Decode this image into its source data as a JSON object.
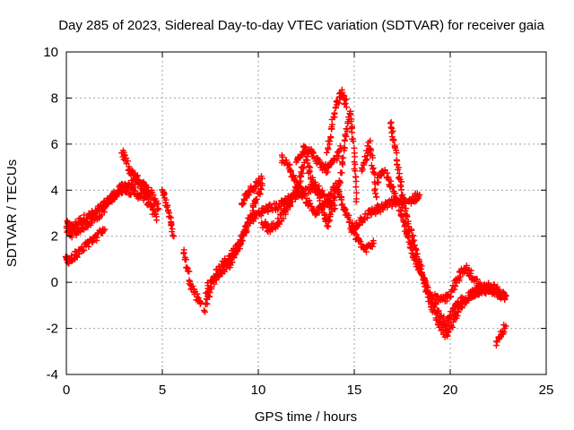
{
  "chart_data": {
    "type": "scatter",
    "title": "Day 285 of 2023, Sidereal Day-to-day VTEC variation (SDTVAR) for receiver gaia",
    "xlabel": "GPS time / hours",
    "ylabel": "SDTVAR / TECUs",
    "xlim": [
      0,
      25
    ],
    "ylim": [
      -4,
      10
    ],
    "xticks": [
      0,
      5,
      10,
      15,
      20,
      25
    ],
    "yticks": [
      -4,
      -2,
      0,
      2,
      4,
      6,
      8,
      10
    ],
    "grid": true,
    "marker": "+",
    "series": [
      {
        "name": "SDTVAR",
        "color": "#ff0000",
        "description": "dense per-satellite traces",
        "tracks": [
          {
            "x": [
              0,
              0.3,
              0.6,
              1.0,
              1.5,
              2.0,
              2.5,
              3.0,
              3.5,
              4.0,
              4.5,
              4.8
            ],
            "y": [
              2.5,
              2.4,
              2.6,
              2.8,
              3.0,
              3.4,
              3.8,
              4.2,
              4.3,
              4.2,
              3.8,
              3.2
            ]
          },
          {
            "x": [
              0,
              0.4,
              0.8,
              1.2,
              1.8,
              2.4,
              3.0,
              3.5,
              4.0,
              4.5
            ],
            "y": [
              2.2,
              2.1,
              2.4,
              2.6,
              3.0,
              3.7,
              4.1,
              3.9,
              3.7,
              3.3
            ]
          },
          {
            "x": [
              2.9,
              3.3,
              3.8,
              4.3,
              4.7
            ],
            "y": [
              5.7,
              4.8,
              4.4,
              3.6,
              2.7
            ]
          },
          {
            "x": [
              5.0,
              5.3,
              5.6
            ],
            "y": [
              4.1,
              3.2,
              2.0
            ]
          },
          {
            "x": [
              6.1,
              6.3,
              6.5,
              6.8,
              7.0
            ],
            "y": [
              1.4,
              0.6,
              -0.1,
              -0.6,
              -0.9
            ]
          },
          {
            "x": [
              7.2,
              7.6,
              8.0,
              8.5,
              9.0,
              9.5,
              10.0,
              10.5,
              11.0,
              11.5,
              12.0,
              12.5,
              13.0,
              13.5,
              14.0
            ],
            "y": [
              -1.2,
              0.0,
              0.4,
              0.8,
              1.6,
              2.6,
              3.0,
              3.2,
              3.3,
              3.6,
              3.8,
              4.0,
              4.2,
              3.6,
              3.2
            ]
          },
          {
            "x": [
              7.3,
              7.8,
              8.3,
              8.8,
              9.3,
              9.8,
              10.2
            ],
            "y": [
              -0.3,
              0.4,
              0.9,
              1.4,
              2.2,
              3.4,
              4.2
            ]
          },
          {
            "x": [
              9.1,
              9.4,
              9.8,
              10.2
            ],
            "y": [
              3.3,
              3.8,
              4.2,
              4.5
            ]
          },
          {
            "x": [
              10.2,
              10.6,
              11.0,
              11.5,
              12.0,
              12.4
            ],
            "y": [
              2.6,
              2.3,
              2.6,
              3.2,
              4.0,
              5.2
            ]
          },
          {
            "x": [
              11.2,
              11.6,
              12.0,
              12.5,
              13.0,
              13.5,
              14.0,
              14.4,
              14.8,
              15.2,
              15.6,
              16.0
            ],
            "y": [
              5.4,
              5.0,
              4.2,
              3.6,
              3.0,
              3.4,
              4.2,
              3.4,
              2.6,
              1.8,
              1.4,
              1.7
            ]
          },
          {
            "x": [
              12.0,
              12.4,
              12.8,
              13.2,
              13.6,
              14.0,
              14.3
            ],
            "y": [
              5.2,
              5.9,
              5.6,
              5.1,
              4.9,
              5.3,
              5.8
            ]
          },
          {
            "x": [
              12.4,
              12.8,
              13.2,
              13.6,
              14.0
            ],
            "y": [
              5.8,
              4.4,
              3.6,
              2.4,
              4.0
            ]
          },
          {
            "x": [
              13.6,
              13.8,
              14.0,
              14.2,
              14.4,
              14.6
            ],
            "y": [
              5.8,
              6.6,
              7.5,
              8.0,
              8.3,
              7.6
            ]
          },
          {
            "x": [
              14.2,
              14.5,
              14.8,
              15.0,
              15.1
            ],
            "y": [
              4.0,
              6.0,
              7.4,
              5.4,
              3.5
            ]
          },
          {
            "x": [
              14.8,
              15.2,
              15.6,
              16.0,
              16.4,
              16.8,
              17.2,
              17.6,
              18.0,
              18.4
            ],
            "y": [
              2.2,
              2.6,
              2.9,
              3.1,
              3.2,
              3.4,
              3.5,
              3.4,
              3.6,
              3.8
            ]
          },
          {
            "x": [
              15.4,
              15.6,
              15.8,
              16.0,
              16.2
            ],
            "y": [
              4.8,
              5.4,
              6.0,
              4.8,
              3.2
            ]
          },
          {
            "x": [
              16.2,
              16.6,
              17.0,
              17.4,
              17.8,
              18.2,
              18.6,
              19.0,
              19.4,
              19.8,
              20.2,
              20.6,
              21.0,
              21.5,
              22.0,
              22.5,
              22.9
            ],
            "y": [
              4.4,
              4.8,
              4.0,
              3.2,
              2.0,
              0.8,
              0.2,
              -0.6,
              -1.4,
              -1.8,
              -1.2,
              -0.8,
              -0.6,
              -0.4,
              -0.3,
              -0.5,
              -0.6
            ]
          },
          {
            "x": [
              16.9,
              17.0,
              17.2,
              17.5,
              17.8,
              18.2,
              18.6,
              19.0,
              19.4,
              19.8,
              20.2,
              20.6,
              21.0,
              21.5,
              22.0,
              22.5,
              22.9
            ],
            "y": [
              6.9,
              6.4,
              5.4,
              3.8,
              2.6,
              1.4,
              0.2,
              -1.0,
              -1.8,
              -2.3,
              -1.6,
              -1.0,
              -0.6,
              -0.3,
              -0.2,
              -0.5,
              -0.6
            ]
          },
          {
            "x": [
              19.2,
              19.6,
              20.0,
              20.4,
              20.8,
              21.2,
              21.6,
              22.0,
              22.4,
              22.8
            ],
            "y": [
              -0.6,
              -0.8,
              -0.6,
              0.2,
              0.6,
              0.2,
              -0.2,
              -0.4,
              -0.2,
              -0.6
            ]
          },
          {
            "x": [
              22.4,
              22.6,
              22.9
            ],
            "y": [
              -2.7,
              -2.3,
              -1.9
            ]
          },
          {
            "x": [
              0.0,
              0.05,
              2.0
            ],
            "y": [
              1.0,
              0.9,
              2.3
            ]
          }
        ]
      }
    ]
  }
}
